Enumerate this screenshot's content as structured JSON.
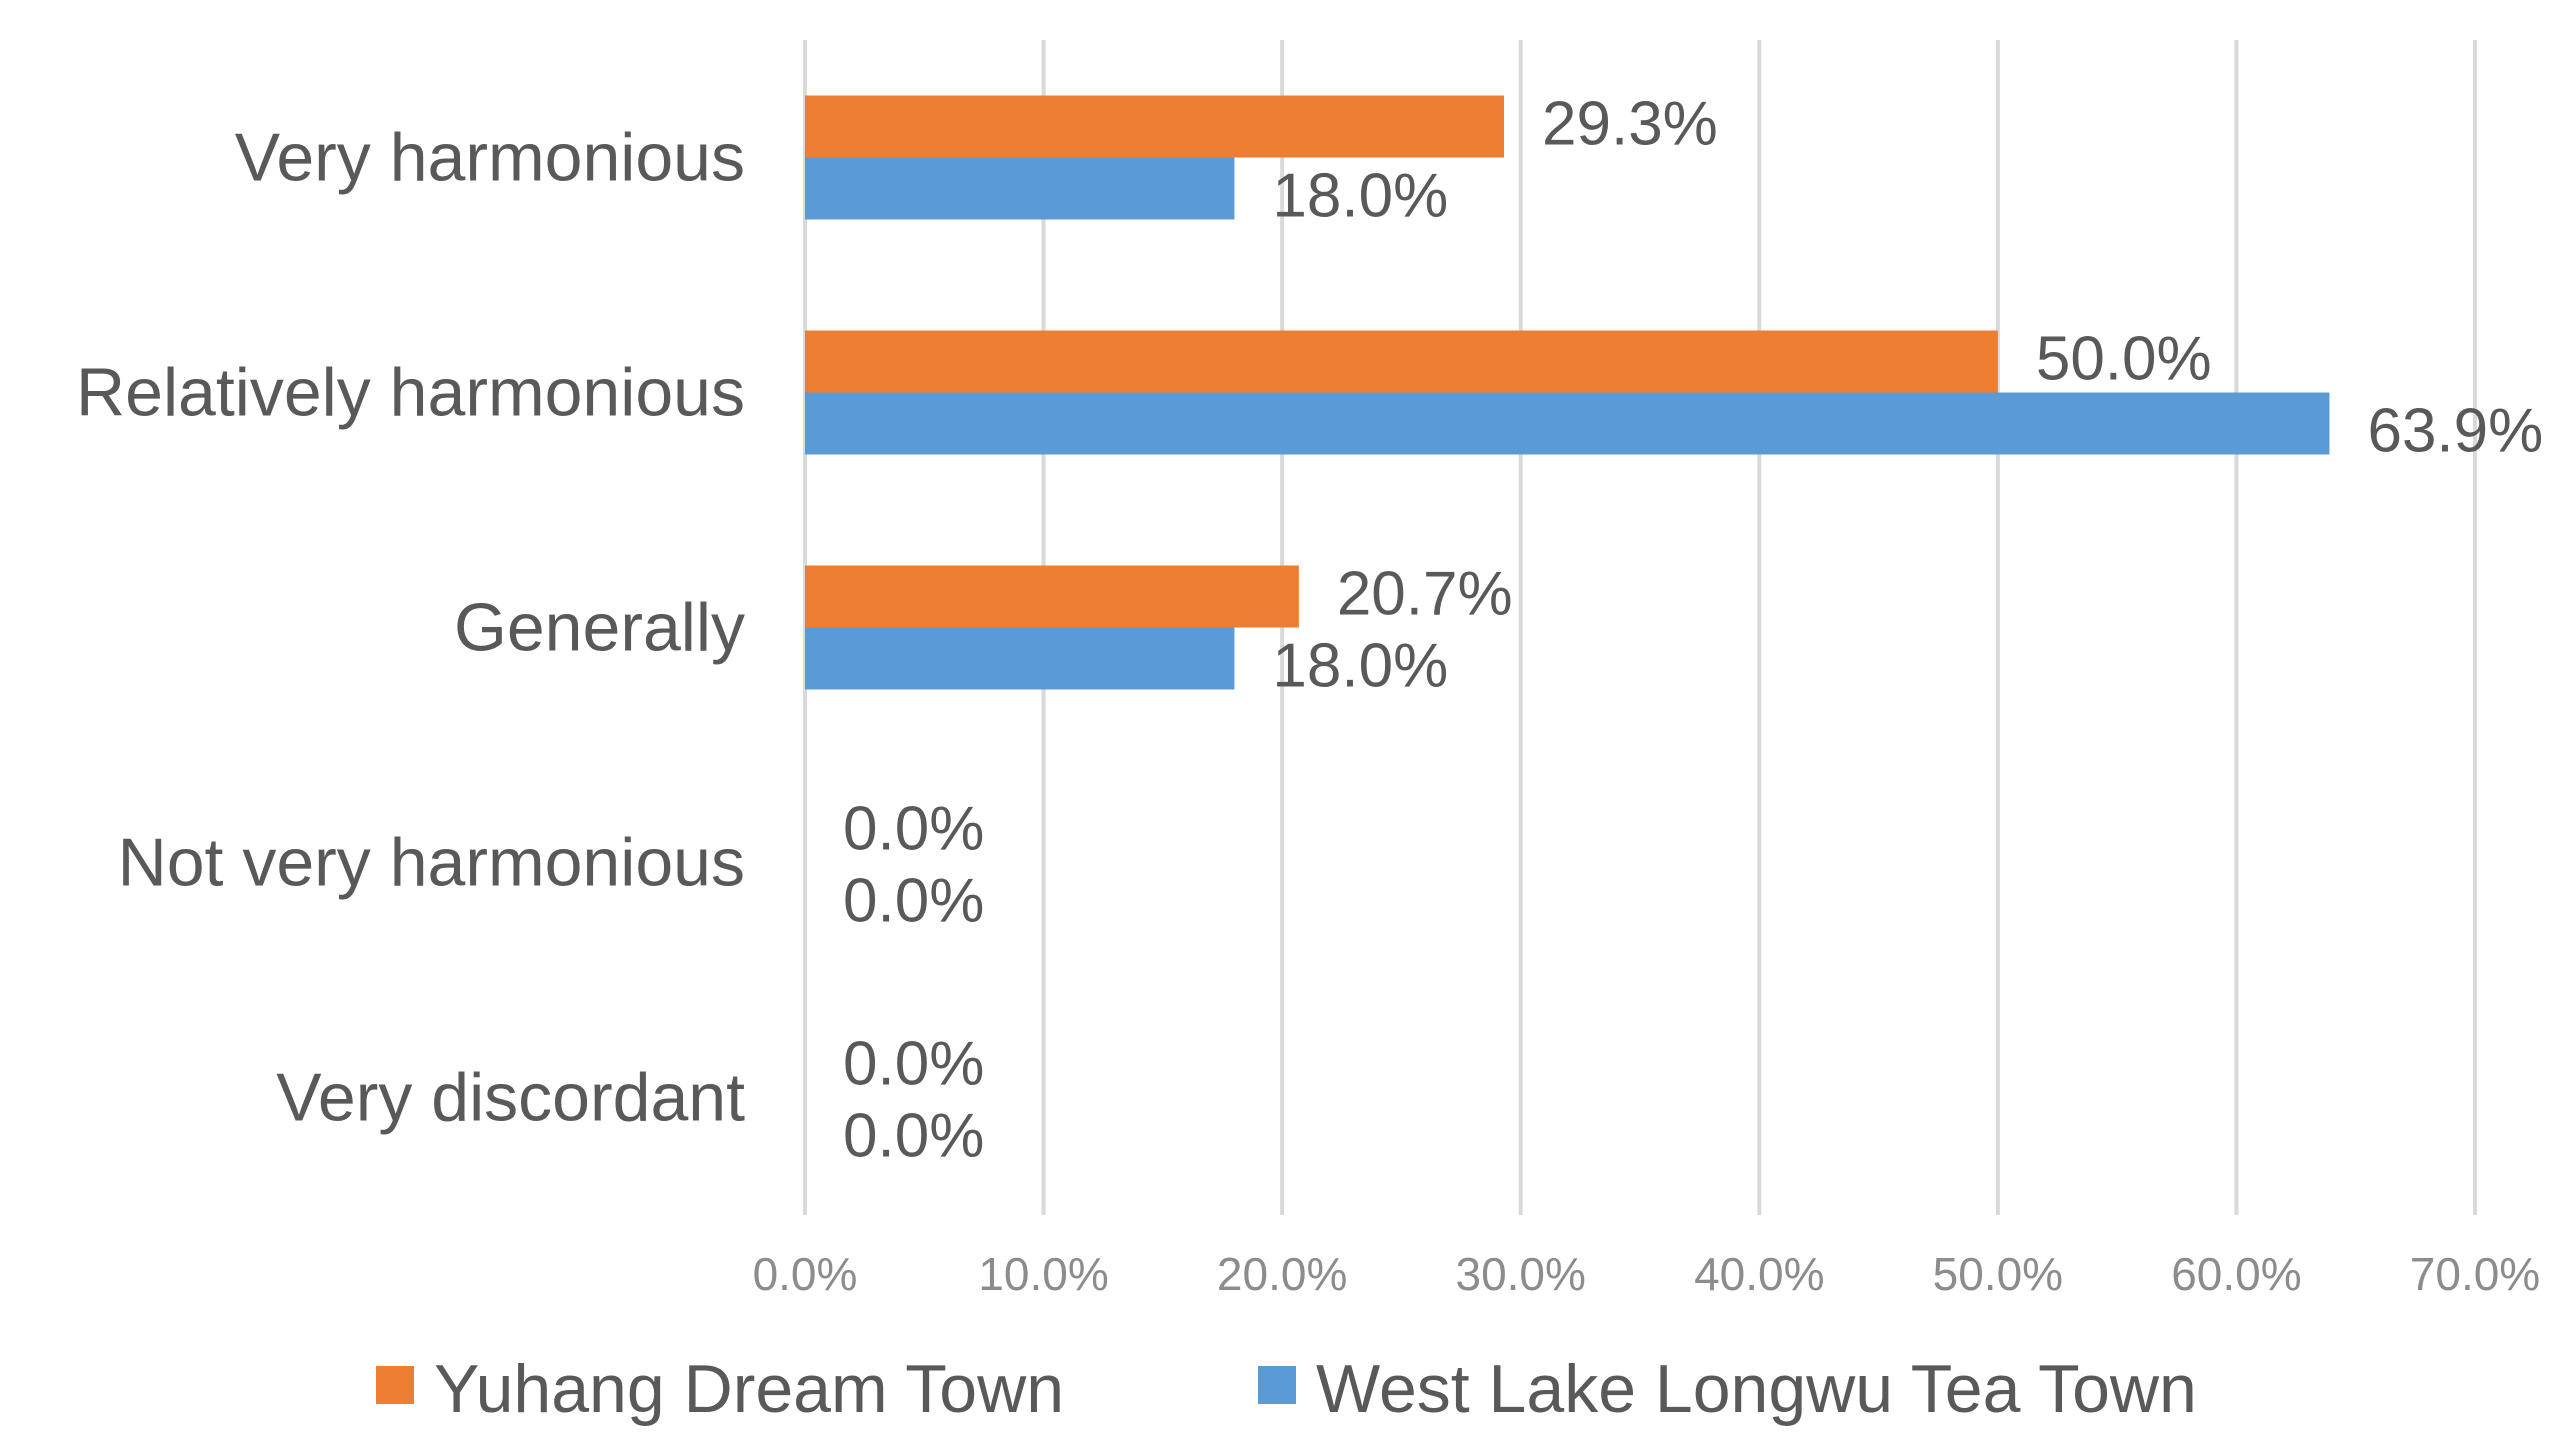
{
  "chart_data": {
    "type": "bar",
    "orientation": "horizontal",
    "categories": [
      "Very harmonious",
      "Relatively harmonious",
      "Generally",
      "Not very harmonious",
      "Very discordant"
    ],
    "series": [
      {
        "name": "Yuhang Dream Town",
        "color": "#ed7d31",
        "values": [
          29.3,
          50.0,
          20.7,
          0.0,
          0.0
        ],
        "labels": [
          "29.3%",
          "50.0%",
          "20.7%",
          "0.0%",
          "0.0%"
        ]
      },
      {
        "name": "West Lake Longwu Tea Town",
        "color": "#5b9bd5",
        "values": [
          18.0,
          63.9,
          18.0,
          0.0,
          0.0
        ],
        "labels": [
          "18.0%",
          "63.9%",
          "18.0%",
          "0.0%",
          "0.0%"
        ]
      }
    ],
    "x_ticks": [
      "0.0%",
      "10.0%",
      "20.0%",
      "30.0%",
      "40.0%",
      "50.0%",
      "60.0%",
      "70.0%"
    ],
    "xlim": [
      0,
      70
    ],
    "grid": true,
    "legend_position": "bottom",
    "title": "",
    "xlabel": "",
    "ylabel": ""
  }
}
